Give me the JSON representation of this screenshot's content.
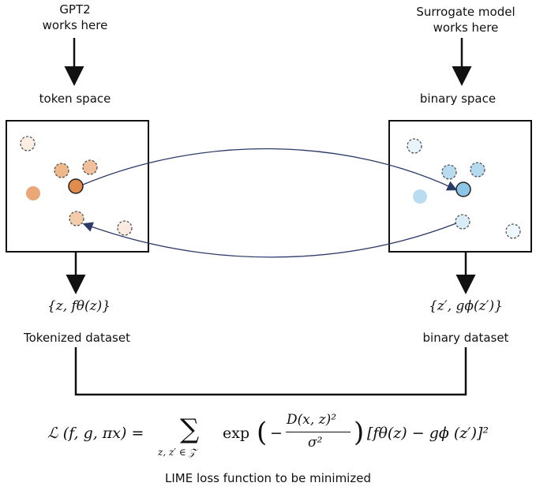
{
  "top_left": {
    "line1": "GPT2",
    "line2": "works here"
  },
  "top_right": {
    "line1": "Surrogate model",
    "line2": "works here"
  },
  "left_space_label": "token space",
  "right_space_label": "binary space",
  "left_set": "{z, fθ(z)}",
  "right_set": "{z′, gϕ(z′)}",
  "left_dataset_label": "Tokenized dataset",
  "right_dataset_label": "binary dataset",
  "formula": {
    "lhs": "ℒ (f, g, πx) =",
    "sum": "∑",
    "sum_sub": "z, z′ ∈ 𝒵",
    "exp": "exp",
    "numerator": "D(x, z)²",
    "denominator": "σ²",
    "bracket": "[fθ(z) − gϕ (z′)]²"
  },
  "caption": "LIME loss function to be minimized",
  "colors": {
    "orange_fill": "#e8a66e",
    "orange_light": "#f3c9a6",
    "blue_fill": "#9fd0ec",
    "blue_light": "#cfe8f5",
    "arrow": "#2b3a67"
  }
}
